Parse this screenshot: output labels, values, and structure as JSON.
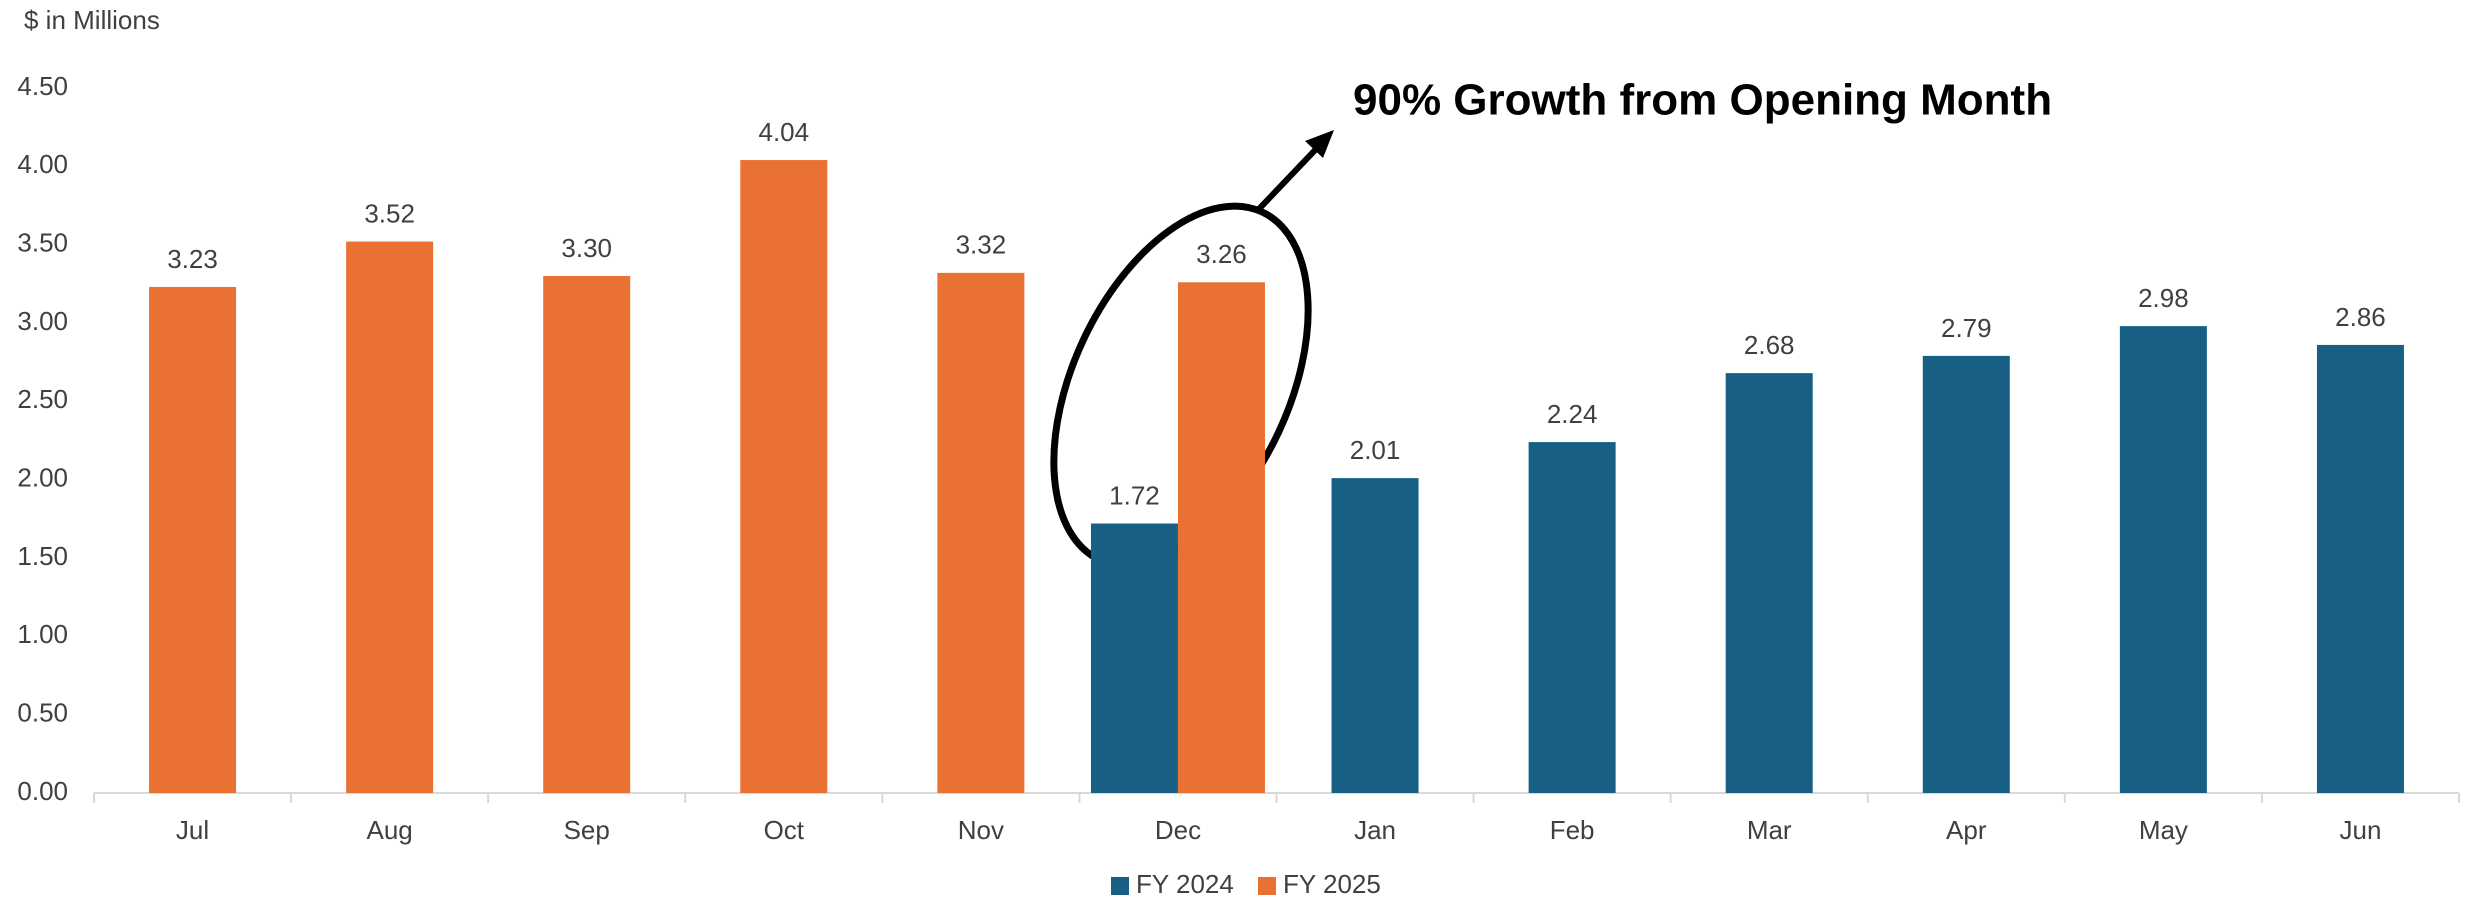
{
  "chart_data": {
    "type": "bar",
    "y_label": "$ in Millions",
    "annotation": "90% Growth from Opening Month",
    "categories": [
      "Jul",
      "Aug",
      "Sep",
      "Oct",
      "Nov",
      "Dec",
      "Jan",
      "Feb",
      "Mar",
      "Apr",
      "May",
      "Jun"
    ],
    "series": [
      {
        "name": "FY 2024",
        "color": "#176084",
        "values": [
          null,
          null,
          null,
          null,
          null,
          1.72,
          2.01,
          2.24,
          2.68,
          2.79,
          2.98,
          2.86
        ],
        "value_labels": [
          null,
          null,
          null,
          null,
          null,
          "1.72",
          "2.01",
          "2.24",
          "2.68",
          "2.79",
          "2.98",
          "2.86"
        ]
      },
      {
        "name": "FY 2025",
        "color": "#e97132",
        "values": [
          3.23,
          3.52,
          3.3,
          4.04,
          3.32,
          3.26,
          null,
          null,
          null,
          null,
          null,
          null
        ],
        "value_labels": [
          "3.23",
          "3.52",
          "3.30",
          "4.04",
          "3.32",
          "3.26",
          null,
          null,
          null,
          null,
          null,
          null
        ]
      }
    ],
    "ylim": [
      0,
      4.5
    ],
    "yticks": [
      {
        "value": 0,
        "label": "0.00"
      },
      {
        "value": 0.5,
        "label": "0.50"
      },
      {
        "value": 1,
        "label": "1.00"
      },
      {
        "value": 1.5,
        "label": "1.50"
      },
      {
        "value": 2,
        "label": "2.00"
      },
      {
        "value": 2.5,
        "label": "2.50"
      },
      {
        "value": 3,
        "label": "3.00"
      },
      {
        "value": 3.5,
        "label": "3.50"
      },
      {
        "value": 4,
        "label": "4.00"
      },
      {
        "value": 4.5,
        "label": "4.50"
      }
    ],
    "grid": false,
    "legend": "bottom"
  }
}
